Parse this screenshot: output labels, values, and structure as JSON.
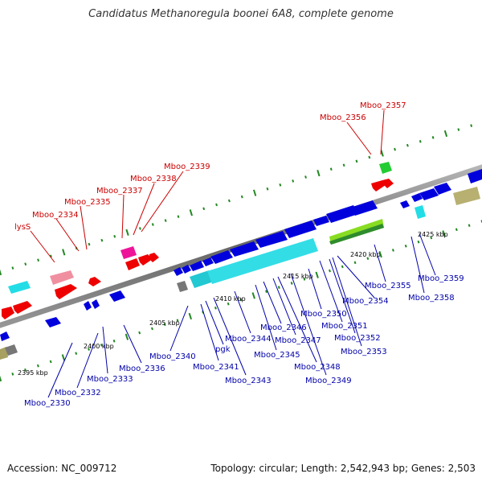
{
  "title": "Candidatus Methanoregula boonei 6A8, complete genome",
  "footer": {
    "accession": "Accession: NC_009712",
    "summary": "Topology: circular; Length: 2,542,943 bp; Genes: 2,503"
  },
  "colors": {
    "forward_gene": "#ff0000",
    "reverse_gene": "#0000dd",
    "highlight_gene": "#00d8e0",
    "pink_gene": "#f080a0",
    "magenta_gene": "#ee1499",
    "green_gene": "#22cc33",
    "lime_band": "#88dd22",
    "olive_gene": "#b7b070",
    "gray_gene": "#777777",
    "axis": "#888888",
    "tick": "#228822",
    "forward_label": "#cc0000",
    "reverse_label": "#0000aa"
  },
  "scale_labels": [
    {
      "text": "2395 kbp"
    },
    {
      "text": "2400 kbp"
    },
    {
      "text": "2405 kbp"
    },
    {
      "text": "2410 kbp"
    },
    {
      "text": "2415 kbp"
    },
    {
      "text": "2420 kbp"
    },
    {
      "text": "2425 kbp"
    }
  ],
  "forward_labels": [
    "lysS",
    "Mboo_2334",
    "Mboo_2335",
    "Mboo_2337",
    "Mboo_2338",
    "Mboo_2339",
    "Mboo_2356",
    "Mboo_2357"
  ],
  "reverse_labels": [
    "Mboo_2330",
    "Mboo_2332",
    "Mboo_2333",
    "Mboo_2336",
    "Mboo_2340",
    "Mboo_2341",
    "pgk",
    "Mboo_2343",
    "Mboo_2344",
    "Mboo_2345",
    "Mboo_2346",
    "Mboo_2347",
    "Mboo_2348",
    "Mboo_2349",
    "Mboo_2350",
    "Mboo_2351",
    "Mboo_2352",
    "Mboo_2353",
    "Mboo_2354",
    "Mboo_2355",
    "Mboo_2358",
    "Mboo_2359"
  ]
}
